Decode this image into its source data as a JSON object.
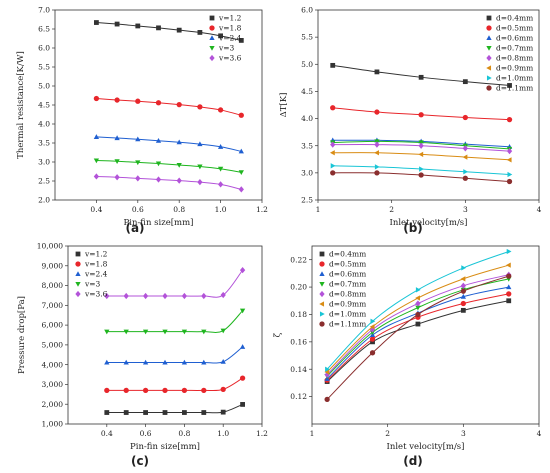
{
  "chart_data": [
    {
      "id": "a",
      "type": "line",
      "caption": "(a)",
      "xlabel": "Pin-fin size[mm]",
      "ylabel": "Thermal resistance[K/W]",
      "xlim": [
        0.2,
        1.2
      ],
      "ylim": [
        2.0,
        7.0
      ],
      "xticks": [
        0.4,
        0.6,
        0.8,
        1.0,
        1.2
      ],
      "yticks": [
        2.0,
        2.5,
        3.0,
        3.5,
        4.0,
        4.5,
        5.0,
        5.5,
        6.0,
        6.5,
        7.0
      ],
      "tick_decimals": {
        "x": 1,
        "y": 1
      },
      "legend": "top-right",
      "x": [
        0.4,
        0.5,
        0.6,
        0.7,
        0.8,
        0.9,
        1.0,
        1.1
      ],
      "series": [
        {
          "name": "v=1.2",
          "color": "#333333",
          "marker": "square",
          "values": [
            6.67,
            6.63,
            6.58,
            6.53,
            6.47,
            6.41,
            6.32,
            6.2
          ]
        },
        {
          "name": "v=1.8",
          "color": "#e8262b",
          "marker": "circle",
          "values": [
            4.67,
            4.63,
            4.6,
            4.56,
            4.51,
            4.45,
            4.37,
            4.23
          ]
        },
        {
          "name": "v=2.4",
          "color": "#1f5fd1",
          "marker": "triangle-up",
          "values": [
            3.66,
            3.63,
            3.6,
            3.56,
            3.52,
            3.47,
            3.4,
            3.28
          ]
        },
        {
          "name": "v=3",
          "color": "#1fb51f",
          "marker": "triangle-down",
          "values": [
            3.04,
            3.02,
            2.99,
            2.96,
            2.92,
            2.88,
            2.82,
            2.73
          ]
        },
        {
          "name": "v=3.6",
          "color": "#b353d9",
          "marker": "diamond",
          "values": [
            2.62,
            2.6,
            2.57,
            2.54,
            2.51,
            2.47,
            2.41,
            2.28
          ]
        }
      ]
    },
    {
      "id": "b",
      "type": "line",
      "caption": "(b)",
      "xlabel": "Inlet velocity[m/s]",
      "ylabel": "ΔT[K]",
      "xlim": [
        1,
        4
      ],
      "ylim": [
        2.5,
        6.0
      ],
      "xticks": [
        1,
        2,
        3,
        4
      ],
      "yticks": [
        2.5,
        3.0,
        3.5,
        4.0,
        4.5,
        5.0,
        5.5,
        6.0
      ],
      "tick_decimals": {
        "x": 0,
        "y": 1
      },
      "legend": "top-right",
      "x": [
        1.2,
        1.8,
        2.4,
        3.0,
        3.6
      ],
      "series": [
        {
          "name": "d=0.4mm",
          "color": "#333333",
          "marker": "square",
          "values": [
            4.98,
            4.86,
            4.76,
            4.68,
            4.61
          ]
        },
        {
          "name": "d=0.5mm",
          "color": "#e8262b",
          "marker": "circle",
          "values": [
            4.2,
            4.12,
            4.07,
            4.02,
            3.98
          ]
        },
        {
          "name": "d=0.6mm",
          "color": "#1f5fd1",
          "marker": "triangle-up",
          "values": [
            3.6,
            3.6,
            3.58,
            3.53,
            3.48
          ]
        },
        {
          "name": "d=0.7mm",
          "color": "#1fb51f",
          "marker": "triangle-down",
          "values": [
            3.56,
            3.58,
            3.56,
            3.5,
            3.44
          ]
        },
        {
          "name": "d=0.8mm",
          "color": "#b353d9",
          "marker": "diamond",
          "values": [
            3.52,
            3.52,
            3.5,
            3.45,
            3.4
          ]
        },
        {
          "name": "d=0.9mm",
          "color": "#d98c14",
          "marker": "triangle-left",
          "values": [
            3.37,
            3.37,
            3.34,
            3.29,
            3.24
          ]
        },
        {
          "name": "d=1.0mm",
          "color": "#19c5d6",
          "marker": "triangle-right",
          "values": [
            3.13,
            3.11,
            3.07,
            3.02,
            2.97
          ]
        },
        {
          "name": "d=1.1mm",
          "color": "#8a2e2e",
          "marker": "circle",
          "values": [
            3.0,
            3.0,
            2.96,
            2.9,
            2.84
          ]
        }
      ]
    },
    {
      "id": "c",
      "type": "line",
      "caption": "(c)",
      "xlabel": "Pin-fin size[mm]",
      "ylabel": "Pressure drop[Pa]",
      "xlim": [
        0.2,
        1.2
      ],
      "ylim": [
        1000,
        10000
      ],
      "xticks": [
        0.4,
        0.6,
        0.8,
        1.0,
        1.2
      ],
      "yticks": [
        1000,
        2000,
        3000,
        4000,
        5000,
        6000,
        7000,
        8000,
        9000,
        10000
      ],
      "tick_decimals": {
        "x": 1,
        "y": 0
      },
      "tick_thousands": true,
      "legend": "top-left",
      "x": [
        0.4,
        0.5,
        0.6,
        0.7,
        0.8,
        0.9,
        1.0,
        1.1
      ],
      "series": [
        {
          "name": "v=1.2",
          "color": "#333333",
          "marker": "square",
          "values": [
            1580,
            1580,
            1580,
            1580,
            1580,
            1580,
            1600,
            1990
          ]
        },
        {
          "name": "v=1.8",
          "color": "#e8262b",
          "marker": "circle",
          "values": [
            2700,
            2700,
            2700,
            2700,
            2700,
            2700,
            2750,
            3320
          ]
        },
        {
          "name": "v=2.4",
          "color": "#1f5fd1",
          "marker": "triangle-up",
          "values": [
            4110,
            4110,
            4110,
            4110,
            4110,
            4110,
            4150,
            4900
          ]
        },
        {
          "name": "v=3",
          "color": "#1fb51f",
          "marker": "triangle-down",
          "values": [
            5670,
            5670,
            5670,
            5670,
            5670,
            5670,
            5720,
            6730
          ]
        },
        {
          "name": "v=3.6",
          "color": "#b353d9",
          "marker": "diamond",
          "values": [
            7470,
            7470,
            7470,
            7470,
            7470,
            7470,
            7520,
            8780
          ]
        }
      ]
    },
    {
      "id": "d",
      "type": "line",
      "caption": "(d)",
      "xlabel": "Inlet velocity[m/s]",
      "ylabel": "ζ",
      "xlim": [
        1,
        4
      ],
      "ylim": [
        0.1,
        0.23
      ],
      "xticks": [
        1,
        2,
        3,
        4
      ],
      "yticks": [
        0.12,
        0.14,
        0.16,
        0.18,
        0.2,
        0.22
      ],
      "tick_decimals": {
        "x": 0,
        "y": 2
      },
      "legend": "top-left",
      "x": [
        1.2,
        1.8,
        2.4,
        3.0,
        3.6
      ],
      "series": [
        {
          "name": "d=0.4mm",
          "color": "#333333",
          "marker": "square",
          "values": [
            0.131,
            0.16,
            0.173,
            0.183,
            0.19
          ]
        },
        {
          "name": "d=0.5mm",
          "color": "#e8262b",
          "marker": "circle",
          "values": [
            0.132,
            0.162,
            0.178,
            0.188,
            0.195
          ]
        },
        {
          "name": "d=0.6mm",
          "color": "#1f5fd1",
          "marker": "triangle-up",
          "values": [
            0.133,
            0.165,
            0.181,
            0.193,
            0.2
          ]
        },
        {
          "name": "d=0.7mm",
          "color": "#1fb51f",
          "marker": "triangle-down",
          "values": [
            0.135,
            0.167,
            0.185,
            0.198,
            0.206
          ]
        },
        {
          "name": "d=0.8mm",
          "color": "#b353d9",
          "marker": "diamond",
          "values": [
            0.136,
            0.169,
            0.188,
            0.201,
            0.209
          ]
        },
        {
          "name": "d=0.9mm",
          "color": "#d98c14",
          "marker": "triangle-left",
          "values": [
            0.138,
            0.171,
            0.192,
            0.206,
            0.216
          ]
        },
        {
          "name": "d=1.0mm",
          "color": "#19c5d6",
          "marker": "triangle-right",
          "values": [
            0.14,
            0.175,
            0.198,
            0.214,
            0.226
          ]
        },
        {
          "name": "d=1.1mm",
          "color": "#8a2e2e",
          "marker": "circle",
          "values": [
            0.118,
            0.152,
            0.18,
            0.197,
            0.208
          ]
        }
      ]
    }
  ]
}
